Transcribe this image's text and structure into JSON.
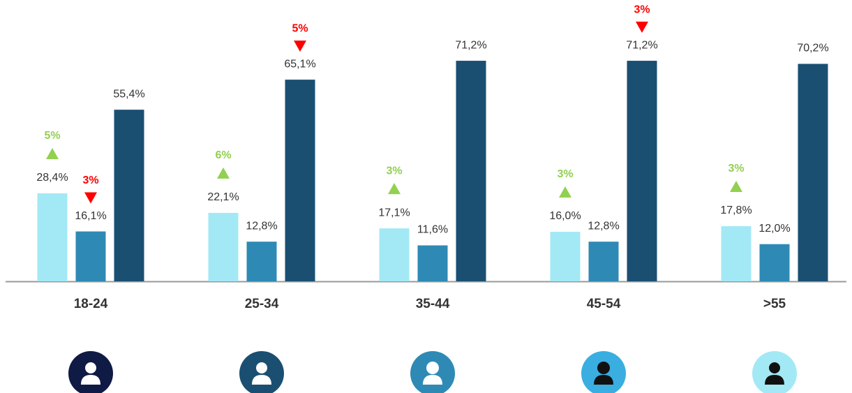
{
  "chart_data": {
    "type": "bar",
    "categories": [
      "18-24",
      "25-34",
      "35-44",
      "45-54",
      ">55"
    ],
    "ylim": [
      0,
      80
    ],
    "up_color": "#92d050",
    "down_color": "#ff0000",
    "series": [
      {
        "color": "#a3e9f5",
        "values": [
          28.4,
          22.1,
          17.1,
          16.0,
          17.8
        ],
        "value_labels": [
          "28,4%",
          "22,1%",
          "17,1%",
          "16,0%",
          "17,8%"
        ],
        "change_labels": [
          "5%",
          "6%",
          "3%",
          "3%",
          "3%"
        ],
        "change_directions": [
          "up",
          "up",
          "up",
          "up",
          "up"
        ]
      },
      {
        "color": "#2e8ab5",
        "values": [
          16.1,
          12.8,
          11.6,
          12.8,
          12.0
        ],
        "value_labels": [
          "16,1%",
          "12,8%",
          "11,6%",
          "12,8%",
          "12,0%"
        ],
        "change_labels": [
          "3%",
          null,
          null,
          null,
          null
        ],
        "change_directions": [
          "down",
          null,
          null,
          null,
          null
        ]
      },
      {
        "color": "#1a4f72",
        "values": [
          55.4,
          65.1,
          71.2,
          71.2,
          70.2
        ],
        "value_labels": [
          "55,4%",
          "65,1%",
          "71,2%",
          "71,2%",
          "70,2%"
        ],
        "change_labels": [
          null,
          "5%",
          null,
          "3%",
          null
        ],
        "change_directions": [
          null,
          "down",
          null,
          "down",
          null
        ]
      }
    ]
  }
}
